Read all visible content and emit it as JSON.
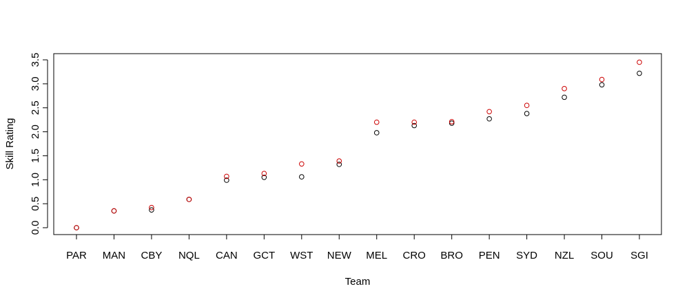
{
  "chart_data": {
    "type": "scatter",
    "title": "",
    "xlabel": "Team",
    "ylabel": "Skill Rating",
    "categories": [
      "PAR",
      "MAN",
      "CBY",
      "NQL",
      "CAN",
      "GCT",
      "WST",
      "NEW",
      "MEL",
      "CRO",
      "BRO",
      "PEN",
      "SYD",
      "NZL",
      "SOU",
      "SGI"
    ],
    "ylim": [
      -0.14,
      3.6
    ],
    "yticks": [
      0.0,
      0.5,
      1.0,
      1.5,
      2.0,
      2.5,
      3.0,
      3.5
    ],
    "ytick_labels": [
      "0.0",
      "0.5",
      "1.0",
      "1.5",
      "2.0",
      "2.5",
      "3.0",
      "3.5"
    ],
    "grid": false,
    "legend": "none",
    "series": [
      {
        "color": "#000000",
        "marker": "open-circle",
        "values": [
          0.0,
          0.35,
          0.37,
          0.59,
          0.99,
          1.05,
          1.06,
          1.32,
          1.98,
          2.13,
          2.18,
          2.27,
          2.38,
          2.72,
          2.98,
          3.22
        ]
      },
      {
        "color": "#cc0000",
        "marker": "open-circle",
        "values": [
          0.0,
          0.35,
          0.42,
          0.59,
          1.07,
          1.13,
          1.33,
          1.39,
          2.2,
          2.2,
          2.21,
          2.42,
          2.55,
          2.9,
          3.09,
          3.45
        ]
      }
    ]
  }
}
